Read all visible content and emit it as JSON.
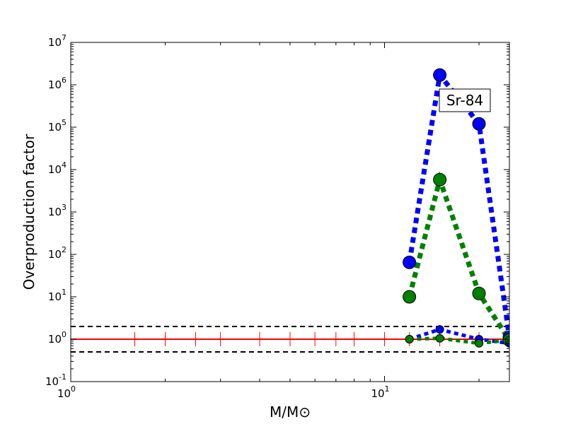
{
  "chart_data": {
    "type": "line",
    "xlabel": "M/M⊙",
    "ylabel": "Overproduction factor",
    "xscale": "log",
    "yscale": "log",
    "xlim": [
      1,
      25
    ],
    "ylim": [
      0.1,
      10000000
    ],
    "x_ticks": [
      {
        "base": "10",
        "exp": "0",
        "value": 1
      },
      {
        "base": "10",
        "exp": "1",
        "value": 10
      }
    ],
    "y_ticks": [
      {
        "base": "10",
        "exp": "-1",
        "value": 0.1
      },
      {
        "base": "10",
        "exp": "0",
        "value": 1
      },
      {
        "base": "10",
        "exp": "1",
        "value": 10
      },
      {
        "base": "10",
        "exp": "2",
        "value": 100
      },
      {
        "base": "10",
        "exp": "3",
        "value": 1000
      },
      {
        "base": "10",
        "exp": "4",
        "value": 10000
      },
      {
        "base": "10",
        "exp": "5",
        "value": 100000
      },
      {
        "base": "10",
        "exp": "6",
        "value": 1000000
      },
      {
        "base": "10",
        "exp": "7",
        "value": 10000000
      }
    ],
    "annotation": "Sr-84",
    "reference_lines": [
      {
        "y": 2,
        "style": "dashed",
        "color": "#000000"
      },
      {
        "y": 1,
        "style": "dashed",
        "color": "#000000"
      },
      {
        "y": 0.5,
        "style": "dashed",
        "color": "#000000"
      }
    ],
    "baseline": {
      "y": 1,
      "color": "#ff0000",
      "error_bar_x": [
        1.6,
        2,
        2.5,
        3,
        4,
        5,
        6,
        7,
        8,
        10,
        12,
        15,
        20,
        25
      ]
    },
    "series": [
      {
        "color": "#0000ff",
        "marker_size": "large",
        "x": [
          12,
          15,
          20,
          25
        ],
        "y": [
          65,
          1700000,
          120000,
          1.1
        ]
      },
      {
        "color": "#008000",
        "marker_size": "large",
        "x": [
          12,
          15,
          20,
          25
        ],
        "y": [
          10,
          5800,
          12,
          0.95
        ]
      },
      {
        "color": "#0000ff",
        "marker_size": "small",
        "x": [
          12,
          15,
          20,
          25
        ],
        "y": [
          1.0,
          1.7,
          1.0,
          0.8
        ]
      },
      {
        "color": "#008000",
        "marker_size": "small",
        "x": [
          12,
          15,
          20,
          25
        ],
        "y": [
          1.0,
          1.05,
          0.8,
          0.95
        ]
      }
    ]
  }
}
